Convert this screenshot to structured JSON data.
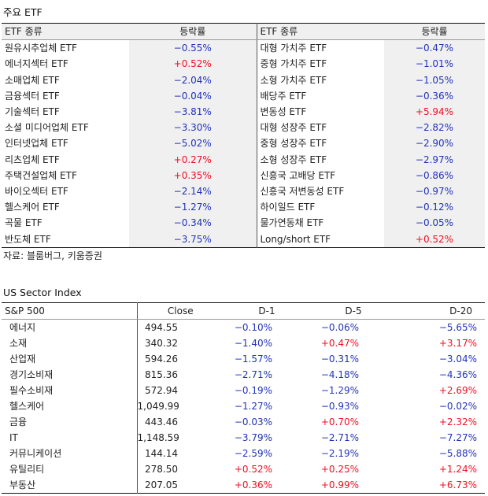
{
  "etf_section": {
    "title": "주요 ETF",
    "col_type": "ETF 종류",
    "col_change": "등락률",
    "left": [
      {
        "name": "원유시추업체 ETF",
        "change": "−0.55%",
        "sign": "neg"
      },
      {
        "name": "에너지섹터 ETF",
        "change": "+0.52%",
        "sign": "pos"
      },
      {
        "name": "소매업체 ETF",
        "change": "−2.04%",
        "sign": "neg"
      },
      {
        "name": "금융섹터 ETF",
        "change": "−0.04%",
        "sign": "neg"
      },
      {
        "name": "기술섹터 ETF",
        "change": "−3.81%",
        "sign": "neg"
      },
      {
        "name": "소셜 미디어업체 ETF",
        "change": "−3.30%",
        "sign": "neg"
      },
      {
        "name": "인터넷업체 ETF",
        "change": "−5.02%",
        "sign": "neg"
      },
      {
        "name": "리츠업체 ETF",
        "change": "+0.27%",
        "sign": "pos"
      },
      {
        "name": "주택건설업체 ETF",
        "change": "+0.35%",
        "sign": "pos"
      },
      {
        "name": "바이오섹터 ETF",
        "change": "−2.14%",
        "sign": "neg"
      },
      {
        "name": "헬스케어 ETF",
        "change": "−1.27%",
        "sign": "neg"
      },
      {
        "name": "곡물 ETF",
        "change": "−0.34%",
        "sign": "neg"
      },
      {
        "name": "반도체 ETF",
        "change": "−3.75%",
        "sign": "neg"
      }
    ],
    "right": [
      {
        "name": "대형 가치주 ETF",
        "change": "−0.47%",
        "sign": "neg"
      },
      {
        "name": "중형 가치주 ETF",
        "change": "−1.01%",
        "sign": "neg"
      },
      {
        "name": "소형 가치주 ETF",
        "change": "−1.05%",
        "sign": "neg"
      },
      {
        "name": "배당주 ETF",
        "change": "−0.36%",
        "sign": "neg"
      },
      {
        "name": "변동성 ETF",
        "change": "+5.94%",
        "sign": "pos"
      },
      {
        "name": "대형 성장주 ETF",
        "change": "−2.82%",
        "sign": "neg"
      },
      {
        "name": "중형 성장주 ETF",
        "change": "−2.90%",
        "sign": "neg"
      },
      {
        "name": "소형 성장주 ETF",
        "change": "−2.97%",
        "sign": "neg"
      },
      {
        "name": "신흥국 고배당 ETF",
        "change": "−0.86%",
        "sign": "neg"
      },
      {
        "name": "신흥국 저변동성 ETF",
        "change": "−0.97%",
        "sign": "neg"
      },
      {
        "name": "하이일드 ETF",
        "change": "−0.12%",
        "sign": "neg"
      },
      {
        "name": "물가연동채 ETF",
        "change": "−0.05%",
        "sign": "neg"
      },
      {
        "name": "Long/short ETF",
        "change": "+0.52%",
        "sign": "pos"
      }
    ],
    "source": "자료: 블룸버그, 키움증권"
  },
  "us_section": {
    "title": "US Sector Index",
    "headers": [
      "S&P 500",
      "Close",
      "D-1",
      "D-5",
      "D-20"
    ],
    "rows": [
      {
        "sector": "에너지",
        "close": "494.55",
        "d1": "−0.10%",
        "d1s": "neg",
        "d5": "−0.06%",
        "d5s": "neg",
        "d20": "−5.65%",
        "d20s": "neg"
      },
      {
        "sector": "소재",
        "close": "340.32",
        "d1": "−1.40%",
        "d1s": "neg",
        "d5": "+0.47%",
        "d5s": "pos",
        "d20": "+3.17%",
        "d20s": "pos"
      },
      {
        "sector": "산업재",
        "close": "594.26",
        "d1": "−1.57%",
        "d1s": "neg",
        "d5": "−0.31%",
        "d5s": "neg",
        "d20": "−3.04%",
        "d20s": "neg"
      },
      {
        "sector": "경기소비재",
        "close": "815.36",
        "d1": "−2.71%",
        "d1s": "neg",
        "d5": "−4.18%",
        "d5s": "neg",
        "d20": "−4.36%",
        "d20s": "neg"
      },
      {
        "sector": "필수소비재",
        "close": "572.94",
        "d1": "−0.19%",
        "d1s": "neg",
        "d5": "−1.29%",
        "d5s": "neg",
        "d20": "+2.69%",
        "d20s": "pos"
      },
      {
        "sector": "헬스케어",
        "close": "1,049.99",
        "d1": "−1.27%",
        "d1s": "neg",
        "d5": "−0.93%",
        "d5s": "neg",
        "d20": "−0.02%",
        "d20s": "neg"
      },
      {
        "sector": "금융",
        "close": "443.46",
        "d1": "−0.03%",
        "d1s": "neg",
        "d5": "+0.70%",
        "d5s": "pos",
        "d20": "+2.32%",
        "d20s": "pos"
      },
      {
        "sector": "IT",
        "close": "1,148.59",
        "d1": "−3.79%",
        "d1s": "neg",
        "d5": "−2.71%",
        "d5s": "neg",
        "d20": "−7.27%",
        "d20s": "neg"
      },
      {
        "sector": "커뮤니케이션",
        "close": "144.14",
        "d1": "−2.59%",
        "d1s": "neg",
        "d5": "−2.19%",
        "d5s": "neg",
        "d20": "−5.88%",
        "d20s": "neg"
      },
      {
        "sector": "유틸리티",
        "close": "278.50",
        "d1": "+0.52%",
        "d1s": "pos",
        "d5": "+0.25%",
        "d5s": "pos",
        "d20": "+1.24%",
        "d20s": "pos"
      },
      {
        "sector": "부동산",
        "close": "207.05",
        "d1": "+0.36%",
        "d1s": "pos",
        "d5": "+0.99%",
        "d5s": "pos",
        "d20": "+6.73%",
        "d20s": "pos"
      }
    ]
  },
  "colors": {
    "negative": "#2233bb",
    "positive": "#ee1122"
  }
}
